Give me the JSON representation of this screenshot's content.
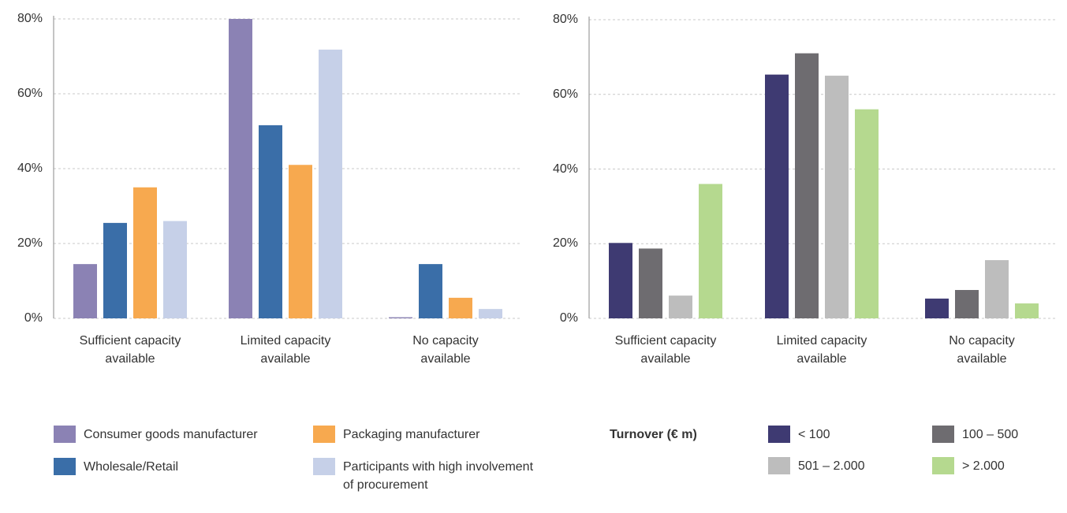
{
  "chart_data": [
    {
      "type": "bar",
      "categories": [
        "Sufficient capacity available",
        "Limited capacity available",
        "No capacity available"
      ],
      "series": [
        {
          "name": "Consumer goods manufacturer",
          "color": "#8b82b4",
          "values": [
            14.5,
            80,
            0.3
          ]
        },
        {
          "name": "Wholesale/Retail",
          "color": "#3a6ea8",
          "values": [
            25.5,
            51.6,
            14.5
          ]
        },
        {
          "name": "Packaging manufacturer",
          "color": "#f7a94f",
          "values": [
            35,
            41,
            5.5
          ]
        },
        {
          "name": "Participants with high involvement of procurement",
          "color": "#c6d0e8",
          "values": [
            26,
            71.8,
            2.5
          ]
        }
      ],
      "ylim": [
        0,
        80
      ],
      "yticks": [
        {
          "value": 0,
          "label": "0%"
        },
        {
          "value": 20,
          "label": "20%"
        },
        {
          "value": 40,
          "label": "40%"
        },
        {
          "value": 60,
          "label": "60%"
        },
        {
          "value": 80,
          "label": "80%"
        }
      ],
      "grid": true
    },
    {
      "type": "bar",
      "legend_title": "Turnover (€ m)",
      "categories": [
        "Sufficient capacity available",
        "Limited capacity available",
        "No capacity available"
      ],
      "series": [
        {
          "name": "< 100",
          "color": "#3e3a72",
          "values": [
            20.2,
            65.3,
            5.3
          ]
        },
        {
          "name": "100 – 500",
          "color": "#6e6c70",
          "values": [
            18.7,
            71,
            7.6
          ]
        },
        {
          "name": "501 – 2.000",
          "color": "#bdbdbd",
          "values": [
            6.1,
            65,
            15.6
          ]
        },
        {
          "name": "> 2.000",
          "color": "#b5d98f",
          "values": [
            36,
            56,
            4
          ]
        }
      ],
      "ylim": [
        0,
        80
      ],
      "yticks": [
        {
          "value": 0,
          "label": "0%"
        },
        {
          "value": 20,
          "label": "20%"
        },
        {
          "value": 40,
          "label": "40%"
        },
        {
          "value": 60,
          "label": "60%"
        },
        {
          "value": 80,
          "label": "80%"
        }
      ],
      "grid": true
    }
  ]
}
